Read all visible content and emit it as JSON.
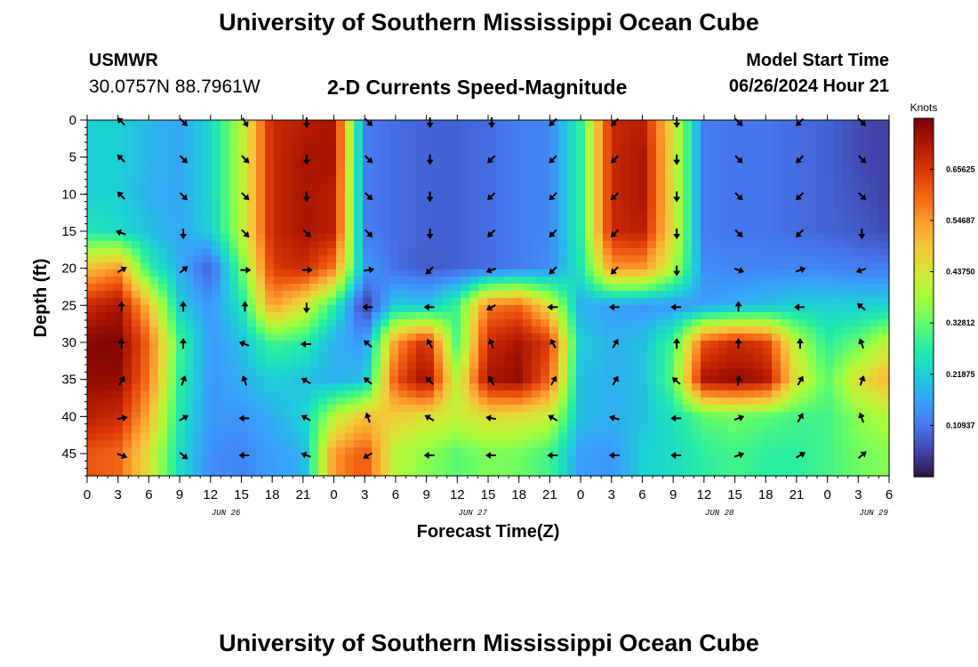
{
  "header": {
    "title": "University of Southern Mississippi Ocean Cube",
    "station": "USMWR",
    "coordinates": "30.0757N  88.7961W",
    "subtitle": "2-D Currents Speed-Magnitude",
    "model_start_label": "Model Start Time",
    "model_start_value": "06/26/2024 Hour 21"
  },
  "footer": {
    "title": "University of Southern Mississippi Ocean Cube"
  },
  "chart_data": {
    "type": "heatmap",
    "title": "2-D Currents Speed-Magnitude",
    "xlabel": "Forecast Time(Z)",
    "ylabel": "Depth (ft)",
    "x_tick_labels": [
      "0",
      "3",
      "6",
      "9",
      "12",
      "15",
      "18",
      "21",
      "0",
      "3",
      "6",
      "9",
      "12",
      "15",
      "18",
      "21",
      "0",
      "3",
      "6",
      "9",
      "12",
      "15",
      "18",
      "21",
      "0",
      "3",
      "6"
    ],
    "date_labels": [
      {
        "label": "JUN 26",
        "tick_index": 4.5
      },
      {
        "label": "JUN 27",
        "tick_index": 12.5
      },
      {
        "label": "JUN 28",
        "tick_index": 20.5
      },
      {
        "label": "JUN 29",
        "tick_index": 25.5
      }
    ],
    "x_range_hours": [
      0,
      78
    ],
    "y_ticks": [
      "0",
      "5",
      "10",
      "15",
      "20",
      "25",
      "30",
      "35",
      "40",
      "45"
    ],
    "y_range_ft": [
      0,
      48
    ],
    "colorbar": {
      "label": "Knots",
      "tick_labels": [
        "0.10937",
        "0.21875",
        "0.32812",
        "0.43750",
        "0.54687",
        "0.65625"
      ],
      "range": [
        0,
        0.765
      ],
      "colors": [
        "#30123b",
        "#4145ab",
        "#4675ed",
        "#39a2fc",
        "#1bcfd4",
        "#24eca6",
        "#61fc6c",
        "#a4fc3b",
        "#d1e834",
        "#f3c63a",
        "#fe9b2d",
        "#f36315",
        "#d93806",
        "#b11901",
        "#7a0403"
      ]
    },
    "speed_knots_grid": {
      "depths_ft": [
        0,
        5,
        10,
        15,
        20,
        25,
        30,
        35,
        40,
        45
      ],
      "hours": [
        0,
        3,
        6,
        9,
        12,
        15,
        18,
        21,
        24,
        27,
        30,
        33,
        36,
        39,
        42,
        45,
        48,
        51,
        54,
        57,
        60,
        63,
        66,
        69,
        72,
        75,
        78
      ],
      "values": [
        [
          0.22,
          0.22,
          0.19,
          0.17,
          0.23,
          0.4,
          0.68,
          0.7,
          0.72,
          0.12,
          0.1,
          0.09,
          0.09,
          0.1,
          0.12,
          0.13,
          0.28,
          0.68,
          0.7,
          0.45,
          0.12,
          0.11,
          0.11,
          0.1,
          0.09,
          0.06,
          0.05
        ],
        [
          0.22,
          0.22,
          0.19,
          0.17,
          0.23,
          0.4,
          0.68,
          0.72,
          0.72,
          0.12,
          0.1,
          0.09,
          0.09,
          0.1,
          0.12,
          0.13,
          0.28,
          0.68,
          0.72,
          0.45,
          0.12,
          0.11,
          0.11,
          0.1,
          0.09,
          0.06,
          0.05
        ],
        [
          0.22,
          0.22,
          0.18,
          0.17,
          0.23,
          0.4,
          0.68,
          0.72,
          0.7,
          0.12,
          0.1,
          0.09,
          0.09,
          0.1,
          0.12,
          0.13,
          0.28,
          0.68,
          0.72,
          0.45,
          0.12,
          0.11,
          0.11,
          0.1,
          0.09,
          0.07,
          0.05
        ],
        [
          0.26,
          0.24,
          0.2,
          0.17,
          0.22,
          0.4,
          0.68,
          0.72,
          0.7,
          0.12,
          0.1,
          0.09,
          0.09,
          0.1,
          0.12,
          0.13,
          0.28,
          0.68,
          0.7,
          0.45,
          0.12,
          0.11,
          0.11,
          0.1,
          0.09,
          0.08,
          0.06
        ],
        [
          0.5,
          0.55,
          0.28,
          0.18,
          0.08,
          0.33,
          0.65,
          0.68,
          0.58,
          0.16,
          0.1,
          0.08,
          0.09,
          0.1,
          0.12,
          0.14,
          0.26,
          0.55,
          0.55,
          0.4,
          0.14,
          0.13,
          0.13,
          0.13,
          0.13,
          0.12,
          0.12
        ],
        [
          0.68,
          0.72,
          0.5,
          0.22,
          0.15,
          0.25,
          0.55,
          0.45,
          0.28,
          0.04,
          0.22,
          0.2,
          0.3,
          0.58,
          0.6,
          0.45,
          0.18,
          0.16,
          0.15,
          0.15,
          0.16,
          0.18,
          0.2,
          0.22,
          0.22,
          0.22,
          0.22
        ],
        [
          0.75,
          0.76,
          0.6,
          0.3,
          0.15,
          0.2,
          0.3,
          0.28,
          0.18,
          0.15,
          0.55,
          0.68,
          0.3,
          0.68,
          0.72,
          0.65,
          0.22,
          0.18,
          0.2,
          0.3,
          0.62,
          0.68,
          0.65,
          0.4,
          0.28,
          0.33,
          0.42
        ],
        [
          0.74,
          0.74,
          0.58,
          0.28,
          0.15,
          0.18,
          0.22,
          0.2,
          0.18,
          0.2,
          0.62,
          0.74,
          0.4,
          0.72,
          0.74,
          0.6,
          0.2,
          0.18,
          0.2,
          0.32,
          0.72,
          0.74,
          0.72,
          0.45,
          0.32,
          0.45,
          0.52
        ],
        [
          0.7,
          0.68,
          0.52,
          0.26,
          0.15,
          0.15,
          0.18,
          0.22,
          0.4,
          0.5,
          0.48,
          0.45,
          0.42,
          0.46,
          0.45,
          0.42,
          0.2,
          0.18,
          0.2,
          0.25,
          0.32,
          0.34,
          0.32,
          0.3,
          0.3,
          0.36,
          0.4
        ],
        [
          0.62,
          0.6,
          0.45,
          0.24,
          0.14,
          0.13,
          0.16,
          0.18,
          0.55,
          0.62,
          0.4,
          0.36,
          0.32,
          0.35,
          0.34,
          0.3,
          0.16,
          0.15,
          0.22,
          0.24,
          0.28,
          0.3,
          0.28,
          0.28,
          0.3,
          0.34,
          0.36
        ]
      ]
    },
    "vectors": {
      "hours": [
        3,
        9,
        15,
        21,
        27,
        33,
        39,
        45,
        51,
        57,
        63,
        69,
        75
      ],
      "depths_ft": [
        0,
        5,
        10,
        15,
        20,
        25,
        30,
        35,
        40,
        45
      ],
      "angles_deg": [
        [
          225,
          45,
          60,
          90,
          45,
          90,
          90,
          135,
          135,
          90,
          45,
          135,
          45
        ],
        [
          225,
          45,
          45,
          90,
          45,
          90,
          135,
          135,
          135,
          90,
          45,
          135,
          45
        ],
        [
          225,
          45,
          45,
          90,
          45,
          90,
          135,
          135,
          135,
          90,
          45,
          135,
          45
        ],
        [
          200,
          90,
          45,
          45,
          45,
          90,
          135,
          135,
          135,
          90,
          45,
          135,
          90
        ],
        [
          330,
          320,
          0,
          0,
          350,
          135,
          160,
          135,
          135,
          90,
          20,
          340,
          160
        ],
        [
          270,
          270,
          270,
          90,
          180,
          180,
          150,
          180,
          180,
          180,
          270,
          180,
          220
        ],
        [
          270,
          270,
          200,
          180,
          220,
          240,
          250,
          240,
          300,
          270,
          270,
          270,
          250
        ],
        [
          300,
          290,
          250,
          210,
          220,
          225,
          240,
          300,
          300,
          220,
          280,
          300,
          290
        ],
        [
          350,
          330,
          180,
          210,
          250,
          210,
          190,
          210,
          195,
          180,
          340,
          300,
          250
        ],
        [
          20,
          40,
          180,
          200,
          150,
          180,
          180,
          180,
          180,
          180,
          340,
          330,
          320
        ]
      ]
    }
  }
}
